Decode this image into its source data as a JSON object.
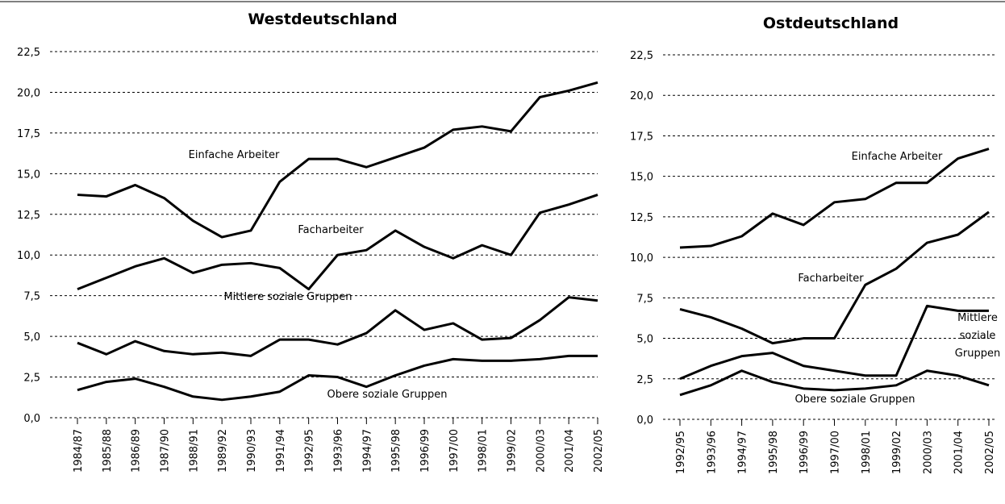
{
  "chart_data": [
    {
      "type": "line",
      "title": "Westdeutschland",
      "categories": [
        "1984/87",
        "1985/88",
        "1986/89",
        "1987/90",
        "1988/91",
        "1989/92",
        "1990/93",
        "1991/94",
        "1992/95",
        "1993/96",
        "1994/97",
        "1995/98",
        "1996/99",
        "1997/00",
        "1998/01",
        "1999/02",
        "2000/03",
        "2001/04",
        "2002/05"
      ],
      "series": [
        {
          "name": "Einfache Arbeiter",
          "color": "#000000",
          "values": [
            13.7,
            13.6,
            14.3,
            13.5,
            12.1,
            11.1,
            11.5,
            14.5,
            15.9,
            15.9,
            15.4,
            16.0,
            16.6,
            17.7,
            17.9,
            17.6,
            19.7,
            20.1,
            20.6
          ]
        },
        {
          "name": "Facharbeiter",
          "color": "#000000",
          "values": [
            7.9,
            8.6,
            9.3,
            9.8,
            8.9,
            9.4,
            9.5,
            9.2,
            7.9,
            10.0,
            10.3,
            11.5,
            10.5,
            9.8,
            10.6,
            10.0,
            12.6,
            13.1,
            13.7
          ]
        },
        {
          "name": "Mittlere soziale Gruppen",
          "color": "#000000",
          "values": [
            4.6,
            3.9,
            4.7,
            4.1,
            3.9,
            4.0,
            3.8,
            4.8,
            4.8,
            4.5,
            5.2,
            6.6,
            5.4,
            5.8,
            4.8,
            4.9,
            6.0,
            7.4,
            7.2
          ]
        },
        {
          "name": "Obere soziale Gruppen",
          "color": "#000000",
          "values": [
            1.7,
            2.2,
            2.4,
            1.9,
            1.3,
            1.1,
            1.3,
            1.6,
            2.6,
            2.5,
            1.9,
            2.6,
            3.2,
            3.6,
            3.5,
            3.5,
            3.6,
            3.8,
            3.8
          ]
        }
      ],
      "ylim": [
        0,
        22.5
      ],
      "yticks": [
        {
          "value": 0,
          "label": "0,0"
        },
        {
          "value": 2.5,
          "label": "2,5"
        },
        {
          "value": 5,
          "label": "5,0"
        },
        {
          "value": 7.5,
          "label": "7,5"
        },
        {
          "value": 10,
          "label": "10,0"
        },
        {
          "value": 12.5,
          "label": "12,5"
        },
        {
          "value": 15,
          "label": "15,0"
        },
        {
          "value": 17.5,
          "label": "17,5"
        },
        {
          "value": 20,
          "label": "20,0"
        },
        {
          "value": 22.5,
          "label": "22,5"
        }
      ],
      "grid": true
    },
    {
      "type": "line",
      "title": "Ostdeutschland",
      "categories": [
        "1992/95",
        "1993/96",
        "1994/97",
        "1995/98",
        "1996/99",
        "1997/00",
        "1998/01",
        "1999/02",
        "2000/03",
        "2001/04",
        "2002/05"
      ],
      "series": [
        {
          "name": "Einfache Arbeiter",
          "color": "#000000",
          "values": [
            10.6,
            10.7,
            11.3,
            12.7,
            12.0,
            13.4,
            13.6,
            14.6,
            14.6,
            16.1,
            16.7
          ]
        },
        {
          "name": "Facharbeiter",
          "color": "#000000",
          "values": [
            6.8,
            6.3,
            5.6,
            4.7,
            5.0,
            5.0,
            8.3,
            9.3,
            10.9,
            11.4,
            12.8
          ]
        },
        {
          "name": "Mittlere soziale Gruppen",
          "color": "#000000",
          "values": [
            2.5,
            3.3,
            3.9,
            4.1,
            3.3,
            3.0,
            2.7,
            2.7,
            7.0,
            6.7,
            6.7
          ]
        },
        {
          "name": "Obere soziale Gruppen",
          "color": "#000000",
          "values": [
            1.5,
            2.1,
            3.0,
            2.3,
            1.9,
            1.8,
            1.9,
            2.1,
            3.0,
            2.7,
            2.1
          ]
        }
      ],
      "ylim": [
        0,
        22.5
      ],
      "yticks": [
        {
          "value": 0,
          "label": "0,0"
        },
        {
          "value": 2.5,
          "label": "2,5"
        },
        {
          "value": 5,
          "label": "5,0"
        },
        {
          "value": 7.5,
          "label": "7,5"
        },
        {
          "value": 10,
          "label": "10,0"
        },
        {
          "value": 12.5,
          "label": "12,5"
        },
        {
          "value": 15,
          "label": "15,0"
        },
        {
          "value": 17.5,
          "label": "17,5"
        },
        {
          "value": 20,
          "label": "20,0"
        },
        {
          "value": 22.5,
          "label": "22,5"
        }
      ],
      "grid": true
    }
  ]
}
